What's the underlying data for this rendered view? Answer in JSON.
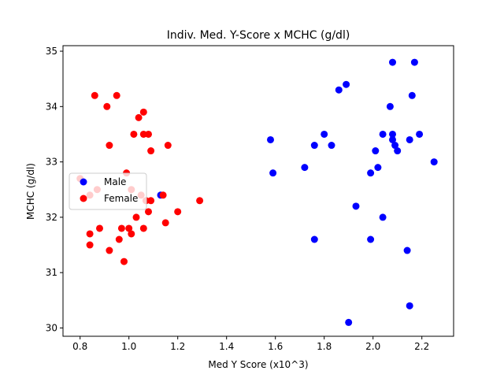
{
  "chart_data": {
    "type": "scatter",
    "title": "Indiv. Med. Y-Score x MCHC (g/dl)",
    "xlabel": "Med Y Score (x10^3)",
    "ylabel": "MCHC (g/dl)",
    "xlim": [
      0.73,
      2.33
    ],
    "ylim": [
      29.85,
      35.1
    ],
    "xticks": [
      0.8,
      1.0,
      1.2,
      1.4,
      1.6,
      1.8,
      2.0,
      2.2
    ],
    "xtick_labels": [
      "0.8",
      "1.0",
      "1.2",
      "1.4",
      "1.6",
      "1.8",
      "2.0",
      "2.2"
    ],
    "yticks": [
      30,
      31,
      32,
      33,
      34,
      35
    ],
    "ytick_labels": [
      "30",
      "31",
      "32",
      "33",
      "34",
      "35"
    ],
    "grid": false,
    "legend": {
      "position": "center-left"
    },
    "series": [
      {
        "name": "Male",
        "color": "#0000ff",
        "points": [
          [
            1.58,
            33.4
          ],
          [
            1.59,
            32.8
          ],
          [
            1.72,
            32.9
          ],
          [
            1.76,
            33.3
          ],
          [
            1.76,
            31.6
          ],
          [
            1.8,
            33.5
          ],
          [
            1.83,
            33.3
          ],
          [
            1.86,
            34.3
          ],
          [
            1.89,
            34.4
          ],
          [
            1.9,
            30.1
          ],
          [
            1.93,
            32.2
          ],
          [
            1.99,
            32.8
          ],
          [
            1.99,
            31.6
          ],
          [
            2.01,
            33.2
          ],
          [
            2.02,
            32.9
          ],
          [
            2.04,
            33.5
          ],
          [
            2.04,
            32.0
          ],
          [
            2.07,
            34.0
          ],
          [
            2.08,
            33.5
          ],
          [
            2.08,
            33.4
          ],
          [
            2.08,
            34.8
          ],
          [
            2.09,
            33.3
          ],
          [
            2.1,
            33.2
          ],
          [
            2.14,
            31.4
          ],
          [
            2.15,
            33.4
          ],
          [
            2.15,
            30.4
          ],
          [
            2.16,
            34.2
          ],
          [
            2.17,
            34.8
          ],
          [
            2.19,
            33.5
          ],
          [
            2.25,
            33.0
          ],
          [
            1.13,
            32.4
          ]
        ]
      },
      {
        "name": "Female",
        "color": "#ff0000",
        "points": [
          [
            0.8,
            32.7
          ],
          [
            0.84,
            31.5
          ],
          [
            0.84,
            31.7
          ],
          [
            0.84,
            32.4
          ],
          [
            0.86,
            34.2
          ],
          [
            0.87,
            32.5
          ],
          [
            0.88,
            31.8
          ],
          [
            0.91,
            34.0
          ],
          [
            0.92,
            33.3
          ],
          [
            0.92,
            31.4
          ],
          [
            0.95,
            34.2
          ],
          [
            0.96,
            31.6
          ],
          [
            0.97,
            31.8
          ],
          [
            0.98,
            31.2
          ],
          [
            0.99,
            32.8
          ],
          [
            1.0,
            31.8
          ],
          [
            1.01,
            31.7
          ],
          [
            1.01,
            32.5
          ],
          [
            1.02,
            33.5
          ],
          [
            1.03,
            32.0
          ],
          [
            1.04,
            33.8
          ],
          [
            1.05,
            32.4
          ],
          [
            1.06,
            31.8
          ],
          [
            1.06,
            33.5
          ],
          [
            1.06,
            33.9
          ],
          [
            1.07,
            32.3
          ],
          [
            1.08,
            32.1
          ],
          [
            1.08,
            33.5
          ],
          [
            1.09,
            33.2
          ],
          [
            1.09,
            32.3
          ],
          [
            1.14,
            32.4
          ],
          [
            1.15,
            31.9
          ],
          [
            1.16,
            33.3
          ],
          [
            1.2,
            32.1
          ],
          [
            1.29,
            32.3
          ]
        ]
      }
    ]
  }
}
